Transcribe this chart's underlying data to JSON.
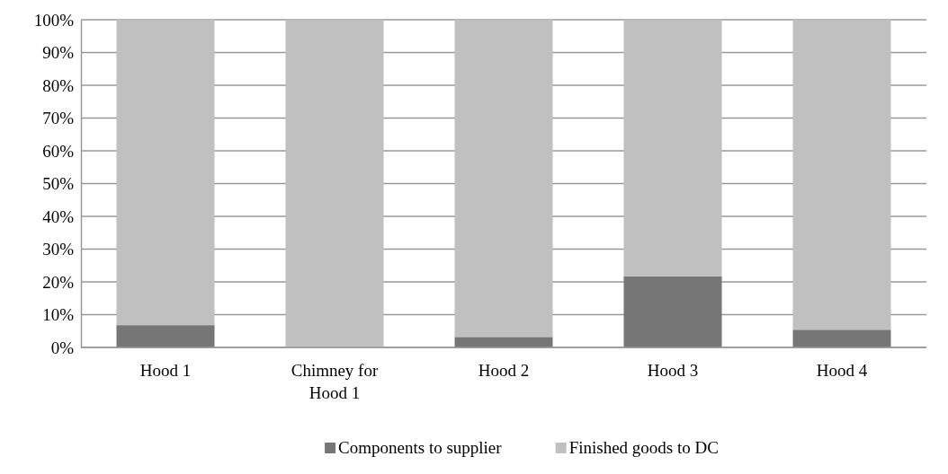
{
  "chart_data": {
    "type": "bar",
    "stacked": true,
    "categories": [
      "Hood 1",
      "Chimney for Hood 1",
      "Hood 2",
      "Hood 3",
      "Hood 4"
    ],
    "series": [
      {
        "name": "Components to supplier",
        "color": "#767676",
        "values": [
          6.8,
          0,
          3.2,
          21.7,
          5.4
        ]
      },
      {
        "name": "Finished goods to DC",
        "color": "#c0c0c0",
        "values": [
          93.2,
          100,
          96.8,
          78.3,
          94.6
        ]
      }
    ],
    "ylim": [
      0,
      100
    ],
    "yticks": [
      {
        "value": 0,
        "label": "0%"
      },
      {
        "value": 10,
        "label": "10%"
      },
      {
        "value": 20,
        "label": "20%"
      },
      {
        "value": 30,
        "label": "30%"
      },
      {
        "value": 40,
        "label": "40%"
      },
      {
        "value": 50,
        "label": "50%"
      },
      {
        "value": 60,
        "label": "60%"
      },
      {
        "value": 70,
        "label": "70%"
      },
      {
        "value": 80,
        "label": "80%"
      },
      {
        "value": 90,
        "label": "90%"
      },
      {
        "value": 100,
        "label": "100%"
      }
    ],
    "grid": "y",
    "legend": "bottom"
  }
}
